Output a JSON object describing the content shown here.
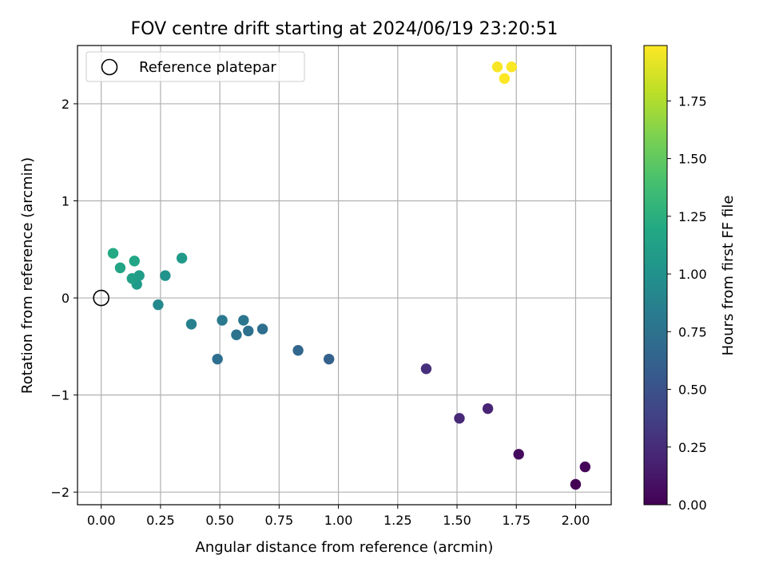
{
  "chart_data": {
    "type": "scatter",
    "title": "FOV centre drift starting at 2024/06/19 23:20:51",
    "xlabel": "Angular distance from reference (arcmin)",
    "ylabel": "Rotation from reference (arcmin)",
    "xlim": [
      -0.1,
      2.15
    ],
    "ylim": [
      -2.13,
      2.6
    ],
    "xticks": [
      0.0,
      0.25,
      0.5,
      0.75,
      1.0,
      1.25,
      1.5,
      1.75,
      2.0
    ],
    "xtick_labels": [
      "0.00",
      "0.25",
      "0.50",
      "0.75",
      "1.00",
      "1.25",
      "1.50",
      "1.75",
      "2.00"
    ],
    "yticks": [
      -2,
      -1,
      0,
      1,
      2
    ],
    "ytick_labels": [
      "−2",
      "−1",
      "0",
      "1",
      "2"
    ],
    "grid": true,
    "legend": {
      "placement": "top-left",
      "entries": [
        "Reference platepar"
      ]
    },
    "reference_point": {
      "x": 0.0,
      "y": 0.0
    },
    "colorbar": {
      "label": "Hours from first FF file",
      "colormap": "viridis",
      "range": [
        0.0,
        1.99
      ],
      "ticks": [
        0.0,
        0.25,
        0.5,
        0.75,
        1.0,
        1.25,
        1.5,
        1.75
      ],
      "tick_labels": [
        "0.00",
        "0.25",
        "0.50",
        "0.75",
        "1.00",
        "1.25",
        "1.50",
        "1.75"
      ]
    },
    "points": [
      {
        "x": 2.0,
        "y": -1.92,
        "c": 0.0
      },
      {
        "x": 2.04,
        "y": -1.74,
        "c": 0.03
      },
      {
        "x": 1.76,
        "y": -1.61,
        "c": 0.06
      },
      {
        "x": 1.63,
        "y": -1.14,
        "c": 0.2
      },
      {
        "x": 1.51,
        "y": -1.24,
        "c": 0.23
      },
      {
        "x": 1.37,
        "y": -0.73,
        "c": 0.27
      },
      {
        "x": 0.96,
        "y": -0.63,
        "c": 0.62
      },
      {
        "x": 0.83,
        "y": -0.54,
        "c": 0.66
      },
      {
        "x": 0.68,
        "y": -0.32,
        "c": 0.72
      },
      {
        "x": 0.62,
        "y": -0.34,
        "c": 0.74
      },
      {
        "x": 0.57,
        "y": -0.38,
        "c": 0.76
      },
      {
        "x": 0.6,
        "y": -0.23,
        "c": 0.78
      },
      {
        "x": 0.51,
        "y": -0.23,
        "c": 0.8
      },
      {
        "x": 0.49,
        "y": -0.63,
        "c": 0.72
      },
      {
        "x": 0.38,
        "y": -0.27,
        "c": 0.86
      },
      {
        "x": 0.24,
        "y": -0.07,
        "c": 0.93
      },
      {
        "x": 0.27,
        "y": 0.23,
        "c": 1.0
      },
      {
        "x": 0.34,
        "y": 0.41,
        "c": 1.06
      },
      {
        "x": 0.15,
        "y": 0.14,
        "c": 1.08
      },
      {
        "x": 0.16,
        "y": 0.23,
        "c": 1.1
      },
      {
        "x": 0.13,
        "y": 0.2,
        "c": 1.12
      },
      {
        "x": 0.08,
        "y": 0.31,
        "c": 1.16
      },
      {
        "x": 0.14,
        "y": 0.38,
        "c": 1.18
      },
      {
        "x": 0.05,
        "y": 0.46,
        "c": 1.2
      },
      {
        "x": 1.67,
        "y": 2.38,
        "c": 1.97
      },
      {
        "x": 1.73,
        "y": 2.38,
        "c": 1.98
      },
      {
        "x": 1.7,
        "y": 2.26,
        "c": 1.99
      }
    ]
  }
}
